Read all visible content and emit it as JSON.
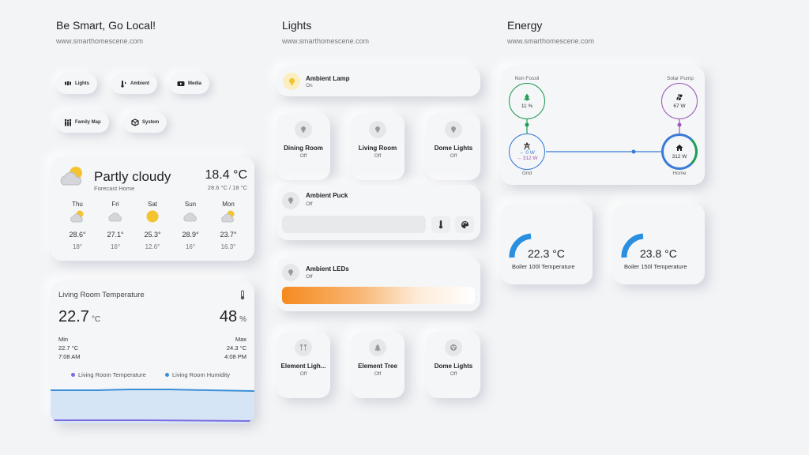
{
  "col1": {
    "title": "Be Smart, Go Local!",
    "subtitle": "www.smarthomescene.com"
  },
  "col2": {
    "title": "Lights",
    "subtitle": "www.smarthomescene.com"
  },
  "col3": {
    "title": "Energy",
    "subtitle": "www.smarthomescene.com"
  },
  "nav": {
    "lights": "Lights",
    "ambient": "Ambient",
    "media": "Media",
    "family_map": "Family Map",
    "system": "System"
  },
  "weather": {
    "condition": "Partly cloudy",
    "location": "Forecast Home",
    "temp": "18.4 °C",
    "range": "28.6 °C / 18 °C",
    "days": [
      {
        "day": "Thu",
        "icon": "partly-cloudy-icon",
        "hi": "28.6°",
        "lo": "18°"
      },
      {
        "day": "Fri",
        "icon": "cloudy-icon",
        "hi": "27.1°",
        "lo": "16°"
      },
      {
        "day": "Sat",
        "icon": "sunny-icon",
        "hi": "25.3°",
        "lo": "12.6°"
      },
      {
        "day": "Sun",
        "icon": "cloudy-icon",
        "hi": "28.9°",
        "lo": "16°"
      },
      {
        "day": "Mon",
        "icon": "partly-cloudy-icon",
        "hi": "23.7°",
        "lo": "16.3°"
      }
    ]
  },
  "sensor": {
    "title": "Living Room Temperature",
    "temp_value": "22.7",
    "temp_unit": "°C",
    "hum_value": "48",
    "hum_unit": "%",
    "min_label": "Min",
    "min_value": "22.7 °C",
    "min_time": "7:08 AM",
    "max_label": "Max",
    "max_value": "24.3 °C",
    "max_time": "4:08 PM",
    "legend_temp": "Living Room Temperature",
    "legend_hum": "Living Room Humidity",
    "color_temp": "#7c6be0",
    "color_hum": "#3a8fd6"
  },
  "lights": {
    "ambient_lamp": {
      "name": "Ambient Lamp",
      "state": "On"
    },
    "dining_room": {
      "name": "Dining Room",
      "state": "Off"
    },
    "living_room": {
      "name": "Living Room",
      "state": "Off"
    },
    "dome_lights": {
      "name": "Dome Lights",
      "state": "Off"
    },
    "ambient_puck": {
      "name": "Ambient Puck",
      "state": "Off"
    },
    "ambient_leds": {
      "name": "Ambient LEDs",
      "state": "Off"
    },
    "element_lights": {
      "name": "Element Ligh...",
      "state": "Off"
    },
    "element_tree": {
      "name": "Element Tree",
      "state": "Off"
    },
    "dome_lights_2": {
      "name": "Dome Lights",
      "state": "Off"
    }
  },
  "energy": {
    "non_fossil": {
      "label": "Non Fossil",
      "value": "11 %",
      "color": "#1f9d55"
    },
    "solar": {
      "label": "Solar Pump",
      "value": "67 W",
      "color": "#9b59b6"
    },
    "grid": {
      "label": "Grid",
      "in": "← 0 W",
      "out": "→ 312 W",
      "color": "#3a7bd5"
    },
    "home": {
      "label": "Home",
      "value": "312 W"
    }
  },
  "boilers": [
    {
      "value": "22.3 °C",
      "label": "Boiler 100l Temperature"
    },
    {
      "value": "23.8 °C",
      "label": "Boiler 150l Temperature"
    }
  ]
}
